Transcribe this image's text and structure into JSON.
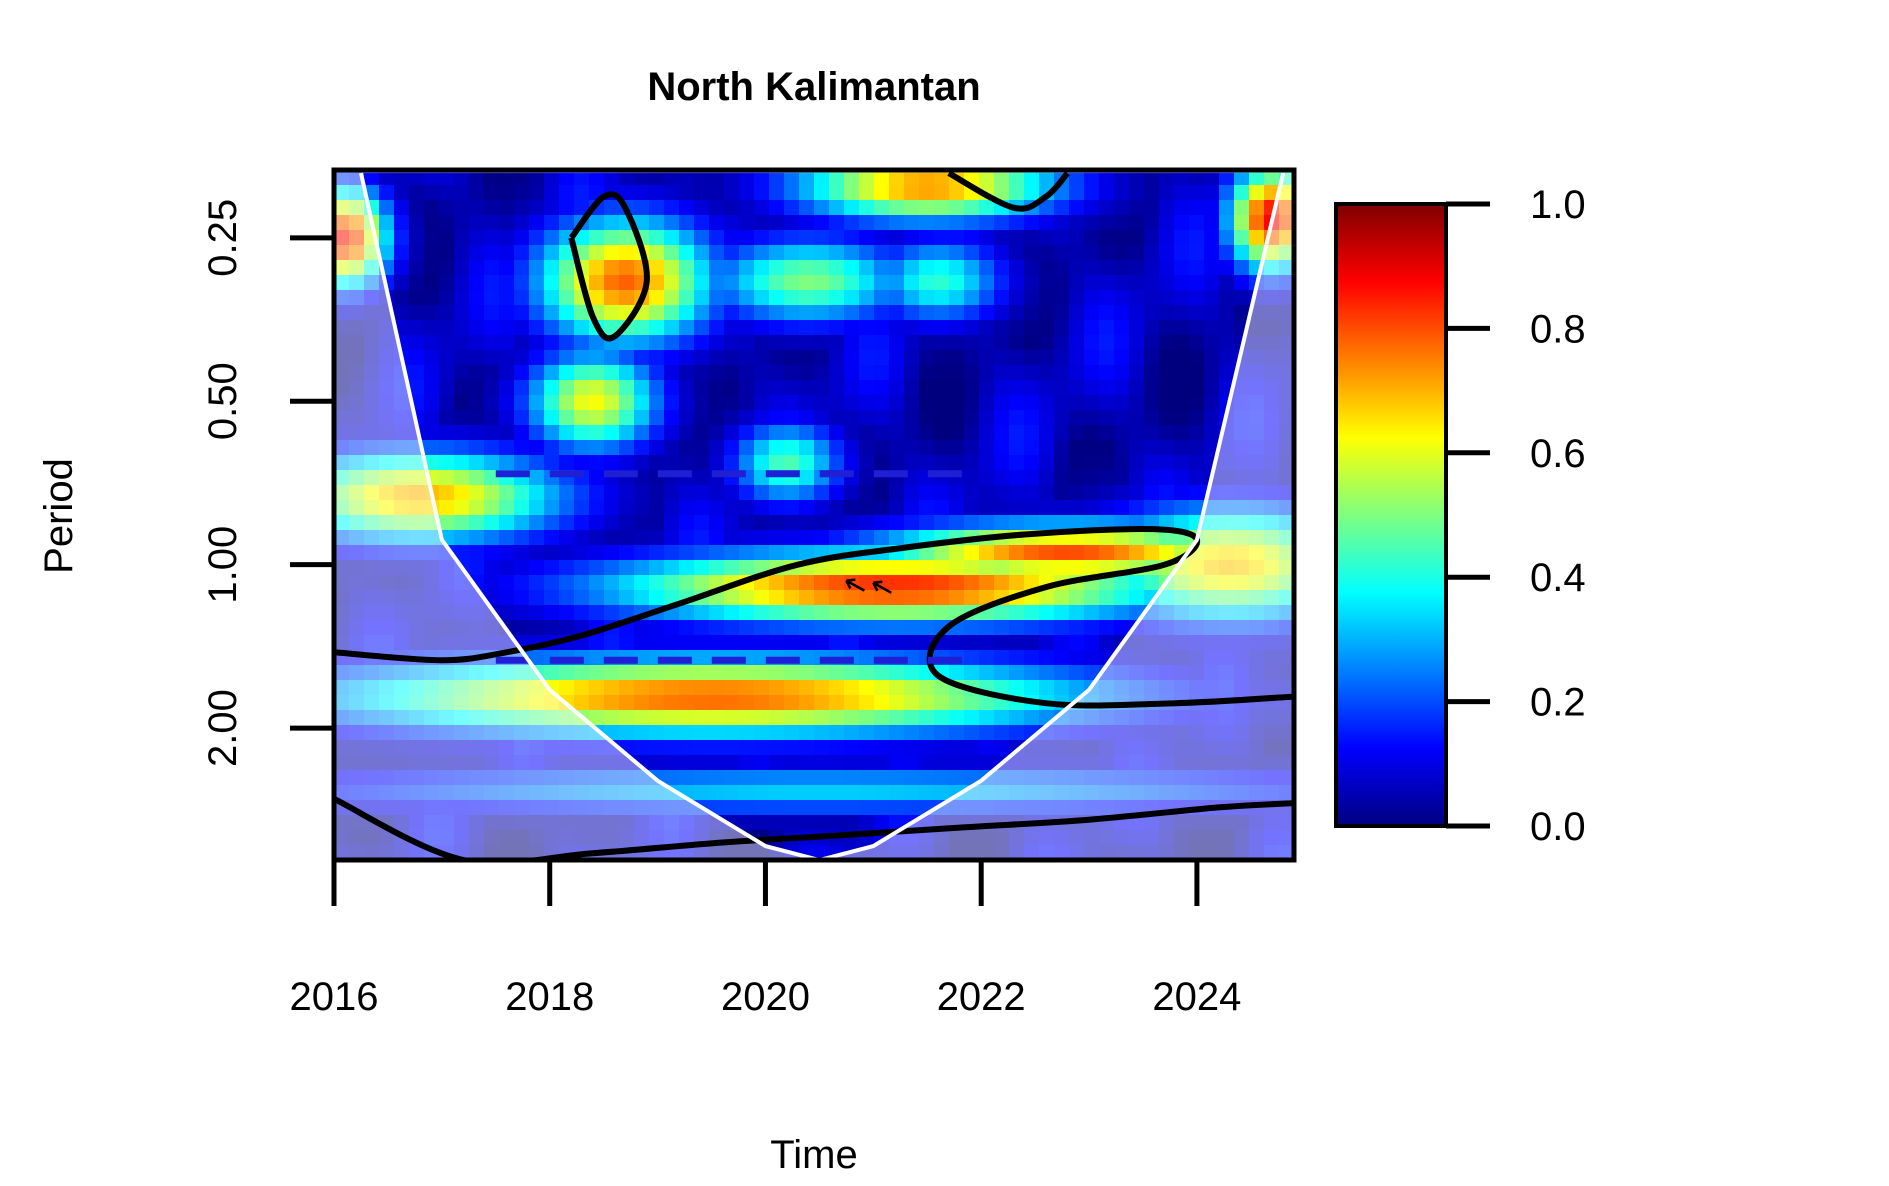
{
  "chart_data": {
    "type": "heatmap",
    "title": "North Kalimantan",
    "xlabel": "Time",
    "ylabel": "Period",
    "xlim": [
      2016,
      2024.9
    ],
    "x_ticks": [
      2016,
      2018,
      2020,
      2022,
      2024
    ],
    "x_tick_labels": [
      "2016",
      "2018",
      "2020",
      "2022",
      "2024"
    ],
    "y_scale": "log2",
    "y_reversed": true,
    "ylim": [
      0.1875,
      3.5
    ],
    "y_ticks": [
      0.25,
      0.5,
      1.0,
      2.0
    ],
    "y_tick_labels": [
      "0.25",
      "0.50",
      "1.00",
      "2.00"
    ],
    "colorbar": {
      "min": 0.0,
      "max": 1.0,
      "ticks": [
        0.0,
        0.2,
        0.4,
        0.6,
        0.8,
        1.0
      ],
      "tick_labels": [
        "0.0",
        "0.2",
        "0.4",
        "0.6",
        "0.8",
        "1.0"
      ],
      "colormap": [
        "#00007f",
        "#0000ff",
        "#007fff",
        "#00ffff",
        "#7fff7f",
        "#ffff00",
        "#ff7f00",
        "#ff0000",
        "#7f0000"
      ]
    },
    "power_features": [
      {
        "t": 2021.2,
        "period": 1.1,
        "value": 0.84,
        "t_width": 2.6,
        "p_width": 0.22
      },
      {
        "t": 2022.8,
        "period": 0.95,
        "value": 0.8,
        "t_width": 1.8,
        "p_width": 0.18
      },
      {
        "t": 2019.5,
        "period": 1.75,
        "value": 0.78,
        "t_width": 3.5,
        "p_width": 0.24
      },
      {
        "t": 2016.8,
        "period": 0.75,
        "value": 0.7,
        "t_width": 1.3,
        "p_width": 0.28
      },
      {
        "t": 2018.7,
        "period": 0.3,
        "value": 0.78,
        "t_width": 0.8,
        "p_width": 0.38
      },
      {
        "t": 2018.4,
        "period": 0.5,
        "value": 0.62,
        "t_width": 0.6,
        "p_width": 0.3
      },
      {
        "t": 2021.5,
        "period": 0.2,
        "value": 0.74,
        "t_width": 1.2,
        "p_width": 0.22
      },
      {
        "t": 2024.7,
        "period": 0.23,
        "value": 0.88,
        "t_width": 0.4,
        "p_width": 0.32
      },
      {
        "t": 2016.1,
        "period": 0.25,
        "value": 0.86,
        "t_width": 0.4,
        "p_width": 0.3
      },
      {
        "t": 2024.3,
        "period": 1.0,
        "value": 0.68,
        "t_width": 1.2,
        "p_width": 0.35
      },
      {
        "t": 2020.4,
        "period": 0.3,
        "value": 0.5,
        "t_width": 0.9,
        "p_width": 0.26
      },
      {
        "t": 2021.6,
        "period": 0.3,
        "value": 0.42,
        "t_width": 0.6,
        "p_width": 0.25
      },
      {
        "t": 2020.2,
        "period": 0.65,
        "value": 0.45,
        "t_width": 0.5,
        "p_width": 0.25
      },
      {
        "t": 2020.5,
        "period": 2.6,
        "value": 0.33,
        "t_width": 5.0,
        "p_width": 0.15
      }
    ],
    "significance_contours": [
      {
        "name": "1-year band",
        "t": [
          2016.0,
          2017.0,
          2017.6,
          2018.3,
          2019.2,
          2020.3,
          2021.3,
          2022.4,
          2023.6,
          2024.0,
          2023.7,
          2022.6,
          2021.7,
          2021.6,
          2022.6,
          2023.8,
          2024.9
        ],
        "period": [
          1.45,
          1.5,
          1.45,
          1.35,
          1.18,
          1.0,
          0.93,
          0.88,
          0.86,
          0.9,
          1.0,
          1.1,
          1.3,
          1.6,
          1.8,
          1.8,
          1.75
        ]
      },
      {
        "name": "upper cone",
        "t": [
          2016.0,
          2017.2,
          2018.4,
          2019.6,
          2020.7,
          2021.8,
          2023.0,
          2024.2,
          2024.9
        ],
        "period": [
          2.7,
          3.5,
          3.4,
          3.25,
          3.15,
          3.05,
          2.95,
          2.8,
          2.75
        ]
      },
      {
        "name": "top-mid patch",
        "t": [
          2018.2,
          2018.5,
          2018.7,
          2018.9,
          2018.6,
          2018.4,
          2018.2
        ],
        "period": [
          0.25,
          0.21,
          0.22,
          0.3,
          0.38,
          0.35,
          0.25
        ]
      },
      {
        "name": "top-right patch",
        "t": [
          2021.7,
          2022.3,
          2022.6,
          2022.8
        ],
        "period": [
          0.19,
          0.22,
          0.21,
          0.19
        ]
      }
    ],
    "ridge_lines": [
      {
        "t_start": 2017.5,
        "t_end": 2022.0,
        "period": 0.68
      },
      {
        "t_start": 2017.5,
        "t_end": 2022.0,
        "period": 1.5
      }
    ],
    "cone_of_influence": {
      "t": [
        2016.25,
        2017.0,
        2018.0,
        2019.0,
        2020.0,
        2020.5,
        2021.0,
        2022.0,
        2023.0,
        2024.0,
        2024.8
      ],
      "period": [
        0.19,
        0.9,
        1.7,
        2.5,
        3.3,
        3.5,
        3.3,
        2.5,
        1.7,
        0.9,
        0.19
      ]
    },
    "arrows_present": true,
    "grid": false,
    "legend": "right colorbar"
  }
}
